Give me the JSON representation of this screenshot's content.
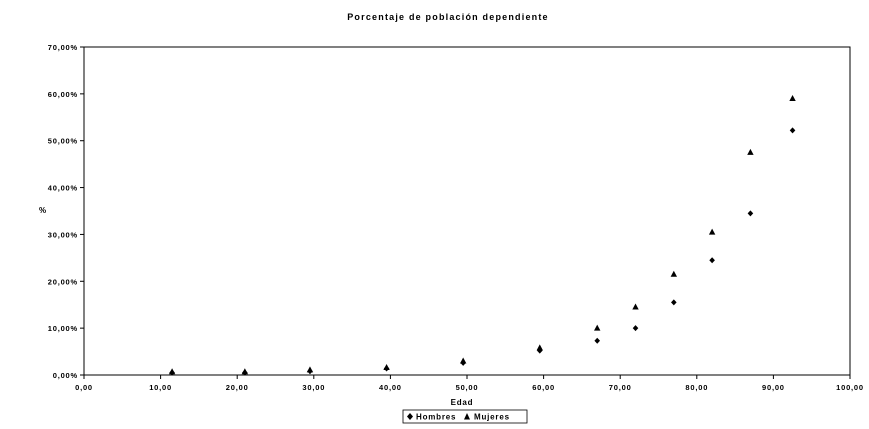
{
  "chart_data": {
    "type": "scatter",
    "title": "Porcentaje de población dependiente",
    "xlabel": "Edad",
    "ylabel": "%",
    "xlim": [
      0,
      100
    ],
    "ylim": [
      0,
      0.7
    ],
    "x_ticks": [
      "0,00",
      "10,00",
      "20,00",
      "30,00",
      "40,00",
      "50,00",
      "60,00",
      "70,00",
      "80,00",
      "90,00",
      "100,00"
    ],
    "y_ticks": [
      "0,00%",
      "10,00%",
      "20,00%",
      "30,00%",
      "40,00%",
      "50,00%",
      "60,00%",
      "70,00%"
    ],
    "grid": false,
    "legend_position": "bottom",
    "series": [
      {
        "name": "Hombres",
        "marker": "diamond",
        "x": [
          11.5,
          21,
          29.5,
          39.5,
          49.5,
          59.5,
          67,
          72,
          77,
          82,
          87,
          92.5
        ],
        "y": [
          0.005,
          0.005,
          0.008,
          0.014,
          0.026,
          0.052,
          0.073,
          0.1,
          0.155,
          0.245,
          0.345,
          0.522
        ]
      },
      {
        "name": "Mujeres",
        "marker": "triangle",
        "x": [
          11.5,
          21,
          29.5,
          39.5,
          49.5,
          59.5,
          67,
          72,
          77,
          82,
          87,
          92.5
        ],
        "y": [
          0.007,
          0.007,
          0.011,
          0.016,
          0.03,
          0.058,
          0.1,
          0.145,
          0.215,
          0.305,
          0.475,
          0.59
        ]
      }
    ]
  }
}
